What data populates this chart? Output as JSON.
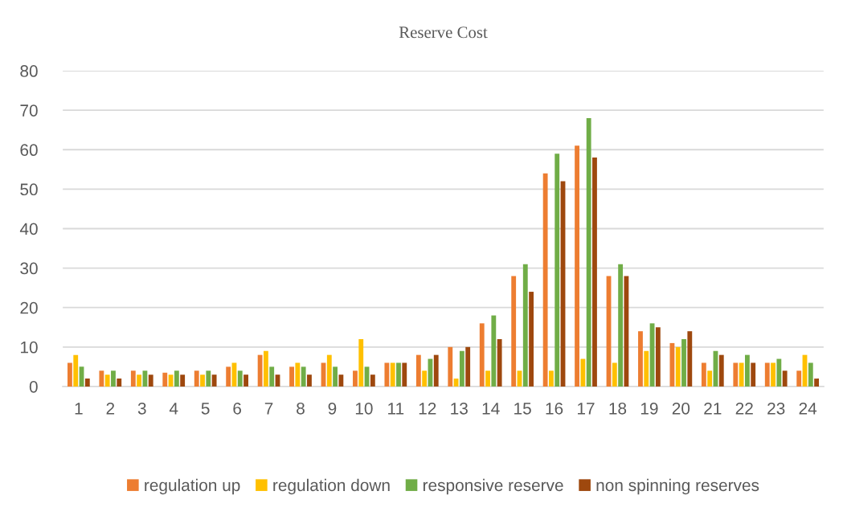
{
  "chart_data": {
    "type": "bar",
    "title": "Reserve Cost",
    "categories": [
      "1",
      "2",
      "3",
      "4",
      "5",
      "6",
      "7",
      "8",
      "9",
      "10",
      "11",
      "12",
      "13",
      "14",
      "15",
      "16",
      "17",
      "18",
      "19",
      "20",
      "21",
      "22",
      "23",
      "24"
    ],
    "series": [
      {
        "name": "regulation up",
        "color": "#ed7d31",
        "values": [
          6,
          4,
          4,
          3.5,
          4,
          5,
          8,
          5,
          6,
          4,
          6,
          8,
          10,
          16,
          28,
          54,
          61,
          28,
          14,
          11,
          6,
          6,
          6,
          4
        ]
      },
      {
        "name": "regulation down",
        "color": "#ffc000",
        "values": [
          8,
          3,
          3,
          3,
          3,
          6,
          9,
          6,
          8,
          12,
          6,
          4,
          2,
          4,
          4,
          4,
          7,
          6,
          9,
          10,
          4,
          6,
          6,
          8
        ]
      },
      {
        "name": "responsive reserve",
        "color": "#70ad47",
        "values": [
          5,
          4,
          4,
          4,
          4,
          4,
          5,
          5,
          5,
          5,
          6,
          7,
          9,
          18,
          31,
          59,
          68,
          31,
          16,
          12,
          9,
          8,
          7,
          6
        ]
      },
      {
        "name": "non spinning reserves",
        "color": "#9e480e",
        "values": [
          2,
          2,
          3,
          3,
          3,
          3,
          3,
          3,
          3,
          3,
          6,
          8,
          10,
          12,
          24,
          52,
          58,
          28,
          15,
          14,
          8,
          6,
          4,
          2
        ]
      }
    ],
    "ylim": [
      0,
      80
    ],
    "yticks": [
      0,
      10,
      20,
      30,
      40,
      50,
      60,
      70,
      80
    ],
    "grid": "y",
    "legend": "bottom"
  }
}
